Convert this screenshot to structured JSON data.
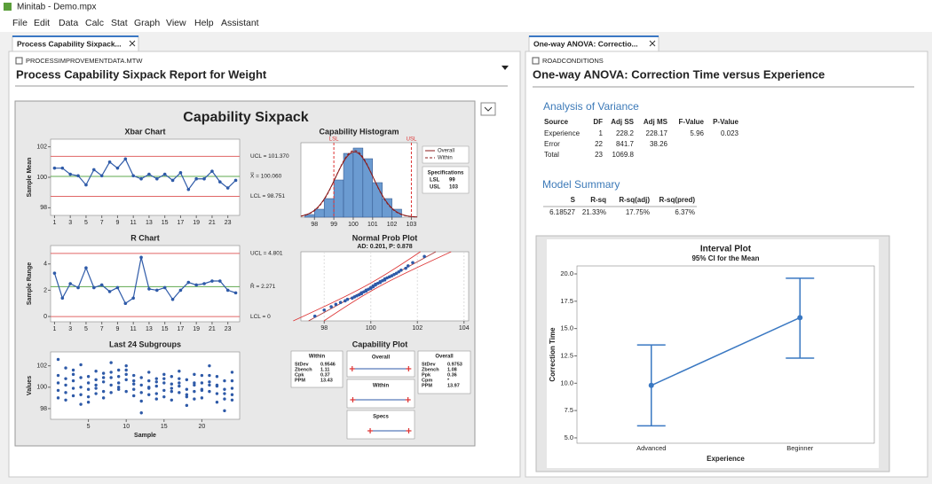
{
  "window": {
    "title": "Minitab - Demo.mpx",
    "menu": [
      "File",
      "Edit",
      "Data",
      "Calc",
      "Stat",
      "Graph",
      "View",
      "Help",
      "Assistant"
    ]
  },
  "left_pane": {
    "tab": "Process Capability Sixpack...",
    "worksheet": "PROCESSIMPROVEMENTDATA.MTW",
    "title": "Process Capability Sixpack Report for Weight",
    "sixpack_title": "Capability Sixpack"
  },
  "right_pane": {
    "tab": "One-way ANOVA: Correctio...",
    "worksheet": "ROADCONDITIONS",
    "title": "One-way ANOVA:  Correction Time versus Experience",
    "anova": {
      "heading": "Analysis of Variance",
      "columns": [
        "Source",
        "DF",
        "Adj SS",
        "Adj MS",
        "F-Value",
        "P-Value"
      ],
      "rows": [
        [
          "Experience",
          "1",
          "228.2",
          "228.17",
          "5.96",
          "0.023"
        ],
        [
          "Error",
          "22",
          "841.7",
          "38.26"
        ],
        [
          "Total",
          "23",
          "1069.8"
        ]
      ]
    },
    "model_summary": {
      "heading": "Model Summary",
      "columns": [
        "S",
        "R-sq",
        "R-sq(adj)",
        "R-sq(pred)"
      ],
      "rows": [
        [
          "6.18527",
          "21.33%",
          "17.75%",
          "6.37%"
        ]
      ]
    }
  },
  "chart_data": [
    {
      "type": "control",
      "title": "Xbar Chart",
      "y_label": "Sample Mean",
      "color": "#2e5aa8",
      "x": [
        1,
        2,
        3,
        4,
        5,
        6,
        7,
        8,
        9,
        10,
        11,
        12,
        13,
        14,
        15,
        16,
        17,
        18,
        19,
        20,
        21,
        22,
        23,
        24
      ],
      "values": [
        100.6,
        100.6,
        100.2,
        100.1,
        99.5,
        100.5,
        100.1,
        101.0,
        100.6,
        101.2,
        100.1,
        99.9,
        100.2,
        99.9,
        100.2,
        99.8,
        100.3,
        99.2,
        99.9,
        99.9,
        100.4,
        99.7,
        99.3,
        99.8
      ],
      "xlim": [
        0.5,
        24.5
      ],
      "xticks": [
        1,
        3,
        5,
        7,
        9,
        11,
        13,
        15,
        17,
        19,
        21,
        23
      ],
      "ylim": [
        97.5,
        102.5
      ],
      "yticks": [
        98,
        100,
        102
      ],
      "limits": [
        {
          "value": 101.37,
          "label": "UCL = 101.370",
          "color": "#e06666"
        },
        {
          "value": 100.06,
          "label": "X̿ = 100.060",
          "color": "#5fa84f"
        },
        {
          "value": 98.751,
          "label": "LCL = 98.751",
          "color": "#e06666"
        }
      ]
    },
    {
      "type": "control",
      "title": "R Chart",
      "y_label": "Sample Range",
      "color": "#2e5aa8",
      "x": [
        1,
        2,
        3,
        4,
        5,
        6,
        7,
        8,
        9,
        10,
        11,
        12,
        13,
        14,
        15,
        16,
        17,
        18,
        19,
        20,
        21,
        22,
        23,
        24
      ],
      "values": [
        3.3,
        1.4,
        2.5,
        2.2,
        3.7,
        2.2,
        2.4,
        1.9,
        2.2,
        1.0,
        1.4,
        4.5,
        2.1,
        2.0,
        2.2,
        1.3,
        2.0,
        2.6,
        2.4,
        2.5,
        2.7,
        2.7,
        2.0,
        1.8
      ],
      "xlim": [
        0.5,
        24.5
      ],
      "xticks": [
        1,
        3,
        5,
        7,
        9,
        11,
        13,
        15,
        17,
        19,
        21,
        23
      ],
      "ylim": [
        -0.4,
        5.4
      ],
      "yticks": [
        0,
        2,
        4
      ],
      "limits": [
        {
          "value": 4.801,
          "label": "UCL = 4.801",
          "color": "#e06666"
        },
        {
          "value": 2.271,
          "label": "R̄ = 2.271",
          "color": "#5fa84f"
        },
        {
          "value": 0,
          "label": "LCL = 0",
          "color": "#e06666"
        }
      ]
    },
    {
      "type": "subgroups",
      "title": "Last 24 Subgroups",
      "x_label": "Sample",
      "y_label": "Values",
      "color": "#2e5aa8",
      "x": [
        1,
        2,
        3,
        4,
        5,
        6,
        7,
        8,
        9,
        10,
        11,
        12,
        13,
        14,
        15,
        16,
        17,
        18,
        19,
        20,
        21,
        22,
        23,
        24
      ],
      "values": [
        [
          102.6,
          101.1,
          100.4,
          99.7,
          99.0
        ],
        [
          101.8,
          100.8,
          100.2,
          99.5,
          98.8
        ],
        [
          101.2,
          100.6,
          99.9,
          99.2,
          101.6
        ],
        [
          102.1,
          100.9,
          100.0,
          99.3,
          98.4
        ],
        [
          101.0,
          99.8,
          99.1,
          98.6,
          100.4
        ],
        [
          101.5,
          100.7,
          100.2,
          99.4,
          99.9
        ],
        [
          101.3,
          100.5,
          99.6,
          99.0,
          100.9
        ],
        [
          102.3,
          101.4,
          100.9,
          100.2,
          99.5
        ],
        [
          101.6,
          101.0,
          100.4,
          99.8,
          100.0
        ],
        [
          102.0,
          101.2,
          100.7,
          99.6,
          101.6
        ],
        [
          101.1,
          100.3,
          99.8,
          99.2,
          100.6
        ],
        [
          100.9,
          100.2,
          99.5,
          98.7,
          97.6
        ],
        [
          101.4,
          100.6,
          99.9,
          99.3,
          100.0
        ],
        [
          100.8,
          100.1,
          99.4,
          98.9,
          100.5
        ],
        [
          101.2,
          100.4,
          99.7,
          99.1,
          100.8
        ],
        [
          101.0,
          100.3,
          99.6,
          98.8,
          99.9
        ],
        [
          101.5,
          100.8,
          100.1,
          99.5,
          100.4
        ],
        [
          100.7,
          99.8,
          99.1,
          98.3,
          99.3
        ],
        [
          101.2,
          100.2,
          99.6,
          98.9,
          100.4
        ],
        [
          101.1,
          100.4,
          99.7,
          99.0,
          99.8
        ],
        [
          102.0,
          101.1,
          100.5,
          99.6,
          100.2
        ],
        [
          101.0,
          100.2,
          99.4,
          98.6,
          100.1
        ],
        [
          100.6,
          99.8,
          98.9,
          97.8,
          99.4
        ],
        [
          101.4,
          100.6,
          99.9,
          99.3,
          98.8
        ]
      ],
      "xlim": [
        0,
        25
      ],
      "xticks": [
        5,
        10,
        15,
        20
      ],
      "ylim": [
        97,
        103.3
      ],
      "yticks": [
        98,
        100,
        102
      ]
    },
    {
      "type": "histogram",
      "title": "Capability Histogram",
      "color": "#6b9bd1",
      "bins": [
        97.5,
        98,
        98.5,
        99,
        99.5,
        100,
        100.5,
        101,
        101.5,
        102,
        102.5
      ],
      "values": [
        1,
        3,
        7,
        14,
        24,
        26,
        22,
        13,
        7,
        3
      ],
      "xlim": [
        97.3,
        103.3
      ],
      "xticks": [
        98,
        99,
        100,
        101,
        102,
        103
      ],
      "ylim": [
        0,
        28
      ],
      "lsl": 99,
      "usl": 103,
      "lsl_label": "LSL",
      "usl_label": "USL",
      "spec_title": "Specifications",
      "curves": [
        {
          "name": "Overall",
          "color": "#8b1a1a"
        },
        {
          "name": "Within",
          "color": "#8b1a1a",
          "dash": true
        }
      ]
    },
    {
      "type": "probability",
      "title": "Normal Prob Plot",
      "subtitle": "AD: 0.201, P: 0.878",
      "color": "#2e5aa8",
      "values": [
        97.6,
        98.0,
        98.3,
        98.5,
        98.7,
        98.9,
        99.0,
        99.2,
        99.3,
        99.4,
        99.5,
        99.6,
        99.6,
        99.7,
        99.8,
        99.8,
        99.9,
        100.0,
        100.0,
        100.1,
        100.1,
        100.2,
        100.2,
        100.3,
        100.4,
        100.4,
        100.5,
        100.6,
        100.6,
        100.7,
        100.8,
        100.9,
        101.0,
        101.1,
        101.2,
        101.3,
        101.5,
        101.6,
        101.8,
        102.3
      ],
      "xlim": [
        97,
        104.2
      ],
      "xticks": [
        98,
        100,
        102,
        104
      ],
      "ylim": [
        -2.6,
        2.6
      ]
    },
    {
      "type": "capability",
      "title": "Capability Plot",
      "xlim": [
        96.6,
        103.6
      ],
      "within": {
        "title": "Within",
        "stats": [
          [
            "StDev",
            "0.9546"
          ],
          [
            "Zbench",
            "1.11"
          ],
          [
            "Cpk",
            "0.37"
          ],
          [
            "PPM",
            "13.43"
          ]
        ]
      },
      "overall": {
        "title": "Overall",
        "stats": [
          [
            "StDev",
            "0.9753"
          ],
          [
            "Zbench",
            "1.08"
          ],
          [
            "Ppk",
            "0.36"
          ],
          [
            "Cpm",
            "*"
          ],
          [
            "PPM",
            "13.97"
          ]
        ]
      },
      "rows": [
        "Overall",
        "Within",
        "Specs"
      ]
    },
    {
      "type": "interval",
      "title": "Interval Plot",
      "subtitle": "95% CI for the Mean",
      "x_label": "Experience",
      "y_label": "Correction Time",
      "color": "#3a78c2",
      "categories": [
        "Advanced",
        "Beginner"
      ],
      "values": [
        9.8,
        16.0
      ],
      "ci_low": [
        6.1,
        12.3
      ],
      "ci_high": [
        13.5,
        19.6
      ],
      "ylim": [
        4.51,
        20.73
      ],
      "yticks": [
        {
          "value": 5,
          "label": "5.0"
        },
        {
          "value": 7.5,
          "label": "7.5"
        },
        {
          "value": 10,
          "label": "10.0"
        },
        {
          "value": 12.5,
          "label": "12.5"
        },
        {
          "value": 15,
          "label": "15.0"
        },
        {
          "value": 17.5,
          "label": "17.5"
        },
        {
          "value": 20,
          "label": "20.0"
        }
      ]
    }
  ]
}
